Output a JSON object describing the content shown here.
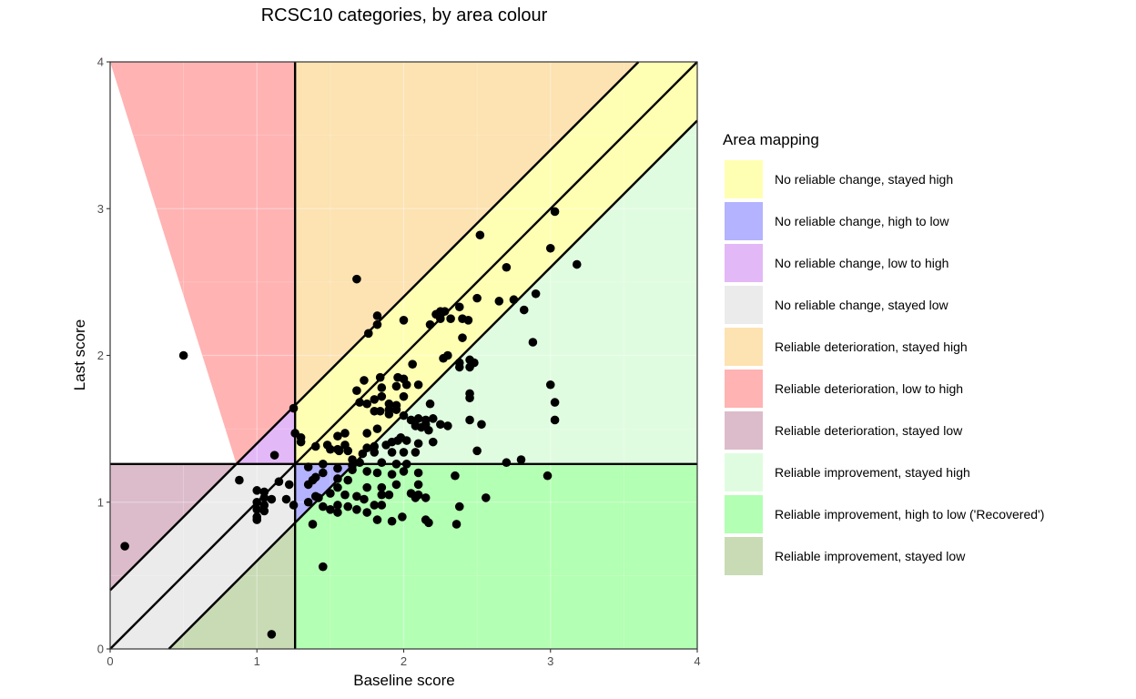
{
  "chart_data": {
    "type": "scatter",
    "title": "RCSC10 categories, by area colour",
    "xlabel": "Baseline score",
    "ylabel": "Last score",
    "xlim": [
      0,
      4
    ],
    "ylim": [
      0,
      4
    ],
    "x_ticks": [
      "0",
      "1",
      "2",
      "3",
      "4"
    ],
    "y_ticks": [
      "0",
      "1",
      "2",
      "3",
      "4"
    ],
    "grid": true,
    "cutoff": 1.26,
    "reliable_change_band": 0.4,
    "legend": {
      "title": "Area mapping",
      "placement": "right",
      "entries": [
        {
          "label": "No reliable change, stayed high",
          "color": "#FFFFB3"
        },
        {
          "label": "No reliable change, high to low",
          "color": "#B3B3FF"
        },
        {
          "label": "No reliable change, low to high",
          "color": "#E3B8F7"
        },
        {
          "label": "No reliable change, stayed low",
          "color": "#EBEBEB"
        },
        {
          "label": "Reliable deterioration, stayed high",
          "color": "#FDE2B2"
        },
        {
          "label": "Reliable deterioration, low to high",
          "color": "#FFB3B3"
        },
        {
          "label": "Reliable deterioration, stayed low",
          "color": "#DCBCCA"
        },
        {
          "label": "Reliable improvement, stayed high",
          "color": "#E0FCE0"
        },
        {
          "label": "Reliable improvement, high to low ('Recovered')",
          "color": "#B3FFB3"
        },
        {
          "label": "Reliable improvement, stayed low",
          "color": "#C9DBB5"
        }
      ]
    },
    "points": [
      [
        0.1,
        0.7
      ],
      [
        0.5,
        2.0
      ],
      [
        1.1,
        0.1
      ],
      [
        1.68,
        2.52
      ],
      [
        2.52,
        2.82
      ],
      [
        3.03,
        2.98
      ],
      [
        3.18,
        2.62
      ],
      [
        3.0,
        2.73
      ],
      [
        2.7,
        2.6
      ],
      [
        2.9,
        2.42
      ],
      [
        2.75,
        2.38
      ],
      [
        2.65,
        2.37
      ],
      [
        2.82,
        2.31
      ],
      [
        2.5,
        2.39
      ],
      [
        2.38,
        2.33
      ],
      [
        2.25,
        2.3
      ],
      [
        2.28,
        2.3
      ],
      [
        2.22,
        2.28
      ],
      [
        2.32,
        2.25
      ],
      [
        2.4,
        2.25
      ],
      [
        2.44,
        2.24
      ],
      [
        2.25,
        2.25
      ],
      [
        2.18,
        2.21
      ],
      [
        2.0,
        2.24
      ],
      [
        1.82,
        2.27
      ],
      [
        1.82,
        2.21
      ],
      [
        1.76,
        2.15
      ],
      [
        2.4,
        2.12
      ],
      [
        2.88,
        2.09
      ],
      [
        2.3,
        2.0
      ],
      [
        2.27,
        1.98
      ],
      [
        2.38,
        1.95
      ],
      [
        2.38,
        1.92
      ],
      [
        2.45,
        1.97
      ],
      [
        2.48,
        1.95
      ],
      [
        2.45,
        1.92
      ],
      [
        2.06,
        1.94
      ],
      [
        1.96,
        1.85
      ],
      [
        1.84,
        1.85
      ],
      [
        2.0,
        1.84
      ],
      [
        1.73,
        1.83
      ],
      [
        2.02,
        1.8
      ],
      [
        2.1,
        1.8
      ],
      [
        1.95,
        1.79
      ],
      [
        1.85,
        1.78
      ],
      [
        1.68,
        1.76
      ],
      [
        3.0,
        1.8
      ],
      [
        2.45,
        1.74
      ],
      [
        2.45,
        1.71
      ],
      [
        1.85,
        1.72
      ],
      [
        2.0,
        1.72
      ],
      [
        1.8,
        1.7
      ],
      [
        1.7,
        1.68
      ],
      [
        1.75,
        1.67
      ],
      [
        1.9,
        1.67
      ],
      [
        1.95,
        1.66
      ],
      [
        2.18,
        1.67
      ],
      [
        3.03,
        1.68
      ],
      [
        1.25,
        1.64
      ],
      [
        1.9,
        1.63
      ],
      [
        1.95,
        1.63
      ],
      [
        1.8,
        1.62
      ],
      [
        1.84,
        1.62
      ],
      [
        1.9,
        1.6
      ],
      [
        2.0,
        1.59
      ],
      [
        2.05,
        1.56
      ],
      [
        2.1,
        1.57
      ],
      [
        2.15,
        1.56
      ],
      [
        2.2,
        1.57
      ],
      [
        2.45,
        1.56
      ],
      [
        3.03,
        1.56
      ],
      [
        2.15,
        1.53
      ],
      [
        2.25,
        1.53
      ],
      [
        2.3,
        1.52
      ],
      [
        2.53,
        1.53
      ],
      [
        2.08,
        1.52
      ],
      [
        2.12,
        1.51
      ],
      [
        2.17,
        1.49
      ],
      [
        1.82,
        1.5
      ],
      [
        1.75,
        1.47
      ],
      [
        1.6,
        1.47
      ],
      [
        1.55,
        1.45
      ],
      [
        1.26,
        1.47
      ],
      [
        1.3,
        1.44
      ],
      [
        1.3,
        1.41
      ],
      [
        2.2,
        1.41
      ],
      [
        2.1,
        1.4
      ],
      [
        1.96,
        1.42
      ],
      [
        1.98,
        1.44
      ],
      [
        2.02,
        1.42
      ],
      [
        1.92,
        1.41
      ],
      [
        1.88,
        1.39
      ],
      [
        1.8,
        1.38
      ],
      [
        1.75,
        1.37
      ],
      [
        1.6,
        1.39
      ],
      [
        1.55,
        1.36
      ],
      [
        1.48,
        1.39
      ],
      [
        1.4,
        1.38
      ],
      [
        1.5,
        1.36
      ],
      [
        1.56,
        1.35
      ],
      [
        1.62,
        1.35
      ],
      [
        1.72,
        1.33
      ],
      [
        1.8,
        1.34
      ],
      [
        1.92,
        1.34
      ],
      [
        2.0,
        1.34
      ],
      [
        2.08,
        1.34
      ],
      [
        2.5,
        1.35
      ],
      [
        1.12,
        1.32
      ],
      [
        1.65,
        1.29
      ],
      [
        1.7,
        1.27
      ],
      [
        1.85,
        1.27
      ],
      [
        1.95,
        1.26
      ],
      [
        2.02,
        1.26
      ],
      [
        2.7,
        1.27
      ],
      [
        2.8,
        1.29
      ],
      [
        1.65,
        1.25
      ],
      [
        1.35,
        1.24
      ],
      [
        1.45,
        1.26
      ],
      [
        1.55,
        1.23
      ],
      [
        1.65,
        1.22
      ],
      [
        1.75,
        1.21
      ],
      [
        1.82,
        1.2
      ],
      [
        1.92,
        1.19
      ],
      [
        2.0,
        1.21
      ],
      [
        2.1,
        1.2
      ],
      [
        2.35,
        1.18
      ],
      [
        2.98,
        1.18
      ],
      [
        1.45,
        1.2
      ],
      [
        1.4,
        1.17
      ],
      [
        1.55,
        1.16
      ],
      [
        1.62,
        1.15
      ],
      [
        1.38,
        1.15
      ],
      [
        0.88,
        1.15
      ],
      [
        1.15,
        1.14
      ],
      [
        1.22,
        1.12
      ],
      [
        1.35,
        1.12
      ],
      [
        1.55,
        1.1
      ],
      [
        1.75,
        1.1
      ],
      [
        1.85,
        1.1
      ],
      [
        1.95,
        1.12
      ],
      [
        2.1,
        1.12
      ],
      [
        1.0,
        1.08
      ],
      [
        1.05,
        1.07
      ],
      [
        1.5,
        1.06
      ],
      [
        1.4,
        1.04
      ],
      [
        1.42,
        1.03
      ],
      [
        1.6,
        1.05
      ],
      [
        1.68,
        1.04
      ],
      [
        1.73,
        1.02
      ],
      [
        1.85,
        1.05
      ],
      [
        1.9,
        1.05
      ],
      [
        2.05,
        1.06
      ],
      [
        2.1,
        1.05
      ],
      [
        2.08,
        1.03
      ],
      [
        2.15,
        1.03
      ],
      [
        2.56,
        1.03
      ],
      [
        1.1,
        1.02
      ],
      [
        1.05,
        1.03
      ],
      [
        1.2,
        1.02
      ],
      [
        1.0,
        1.0
      ],
      [
        1.05,
        0.98
      ],
      [
        1.25,
        0.98
      ],
      [
        1.35,
        1.0
      ],
      [
        1.45,
        0.97
      ],
      [
        1.55,
        0.98
      ],
      [
        1.62,
        0.97
      ],
      [
        1.8,
        0.98
      ],
      [
        1.85,
        0.98
      ],
      [
        2.38,
        0.97
      ],
      [
        1.0,
        0.95
      ],
      [
        1.05,
        0.94
      ],
      [
        1.5,
        0.95
      ],
      [
        1.55,
        0.93
      ],
      [
        1.68,
        0.95
      ],
      [
        1.75,
        0.93
      ],
      [
        1.99,
        0.9
      ],
      [
        1.0,
        0.9
      ],
      [
        1.0,
        0.88
      ],
      [
        1.82,
        0.88
      ],
      [
        1.92,
        0.87
      ],
      [
        2.15,
        0.88
      ],
      [
        2.17,
        0.86
      ],
      [
        2.36,
        0.85
      ],
      [
        1.38,
        0.85
      ],
      [
        1.45,
        0.56
      ]
    ]
  }
}
